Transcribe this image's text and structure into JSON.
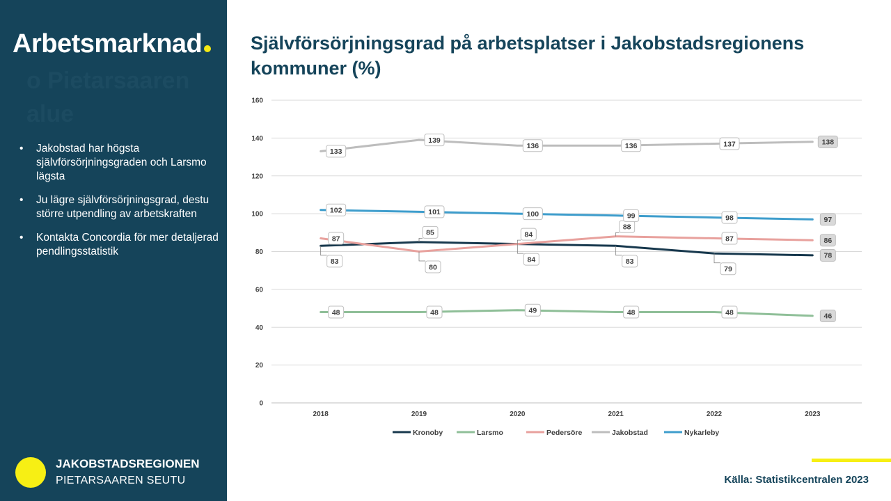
{
  "sidebar": {
    "title": "Arbetsmarknad",
    "ghost_text": "o Pietarsaaren alue",
    "bullets": [
      "Jakobstad har högsta självförsörjningsgraden och Larsmo lägsta",
      "Ju lägre självförsörjningsgrad, destu större utpendling av arbetskraften",
      "Kontakta Concordia för mer detaljerad pendlingsstatistik"
    ],
    "logo_name": "JAKOBSTADSREGIONEN",
    "logo_sub": "PIETARSAAREN SEUTU"
  },
  "colors": {
    "sidebar_bg": "#15445a",
    "accent_yellow": "#f7ef14",
    "title_text": "#15445a"
  },
  "source": "Källa: Statistikcentralen 2023",
  "chart_data": {
    "type": "line",
    "title": "Självförsörjningsgrad på arbetsplatser i Jakobstadsregionens kommuner (%)",
    "xlabel": "",
    "ylabel": "",
    "categories": [
      "2018",
      "2019",
      "2020",
      "2021",
      "2022",
      "2023"
    ],
    "ylim": [
      0,
      160
    ],
    "yticks": [
      0,
      20,
      40,
      60,
      80,
      100,
      120,
      140,
      160
    ],
    "grid": true,
    "legend_position": "bottom",
    "series": [
      {
        "name": "Kronoby",
        "color": "#17384d",
        "values": [
          83,
          85,
          84,
          83,
          79,
          78
        ],
        "label_pos": [
          "below",
          "above",
          "below",
          "below",
          "below",
          "right"
        ]
      },
      {
        "name": "Larsmo",
        "color": "#8fbf98",
        "values": [
          48,
          48,
          49,
          48,
          48,
          46
        ],
        "label_pos": [
          "right",
          "right",
          "right",
          "right",
          "right",
          "right"
        ]
      },
      {
        "name": "Pedersöre",
        "color": "#e8a19d",
        "values": [
          87,
          80,
          84,
          88,
          87,
          86
        ],
        "label_pos": [
          "right",
          "below",
          "above",
          "above",
          "right",
          "right"
        ]
      },
      {
        "name": "Jakobstad",
        "color": "#bdbdbd",
        "values": [
          133,
          139,
          136,
          136,
          137,
          138
        ],
        "label_pos": [
          "right",
          "right",
          "right",
          "right",
          "right",
          "right"
        ]
      },
      {
        "name": "Nykarleby",
        "color": "#3e9dcc",
        "values": [
          102,
          101,
          100,
          99,
          98,
          97
        ],
        "label_pos": [
          "right",
          "right",
          "right",
          "right",
          "right",
          "right"
        ]
      }
    ]
  }
}
